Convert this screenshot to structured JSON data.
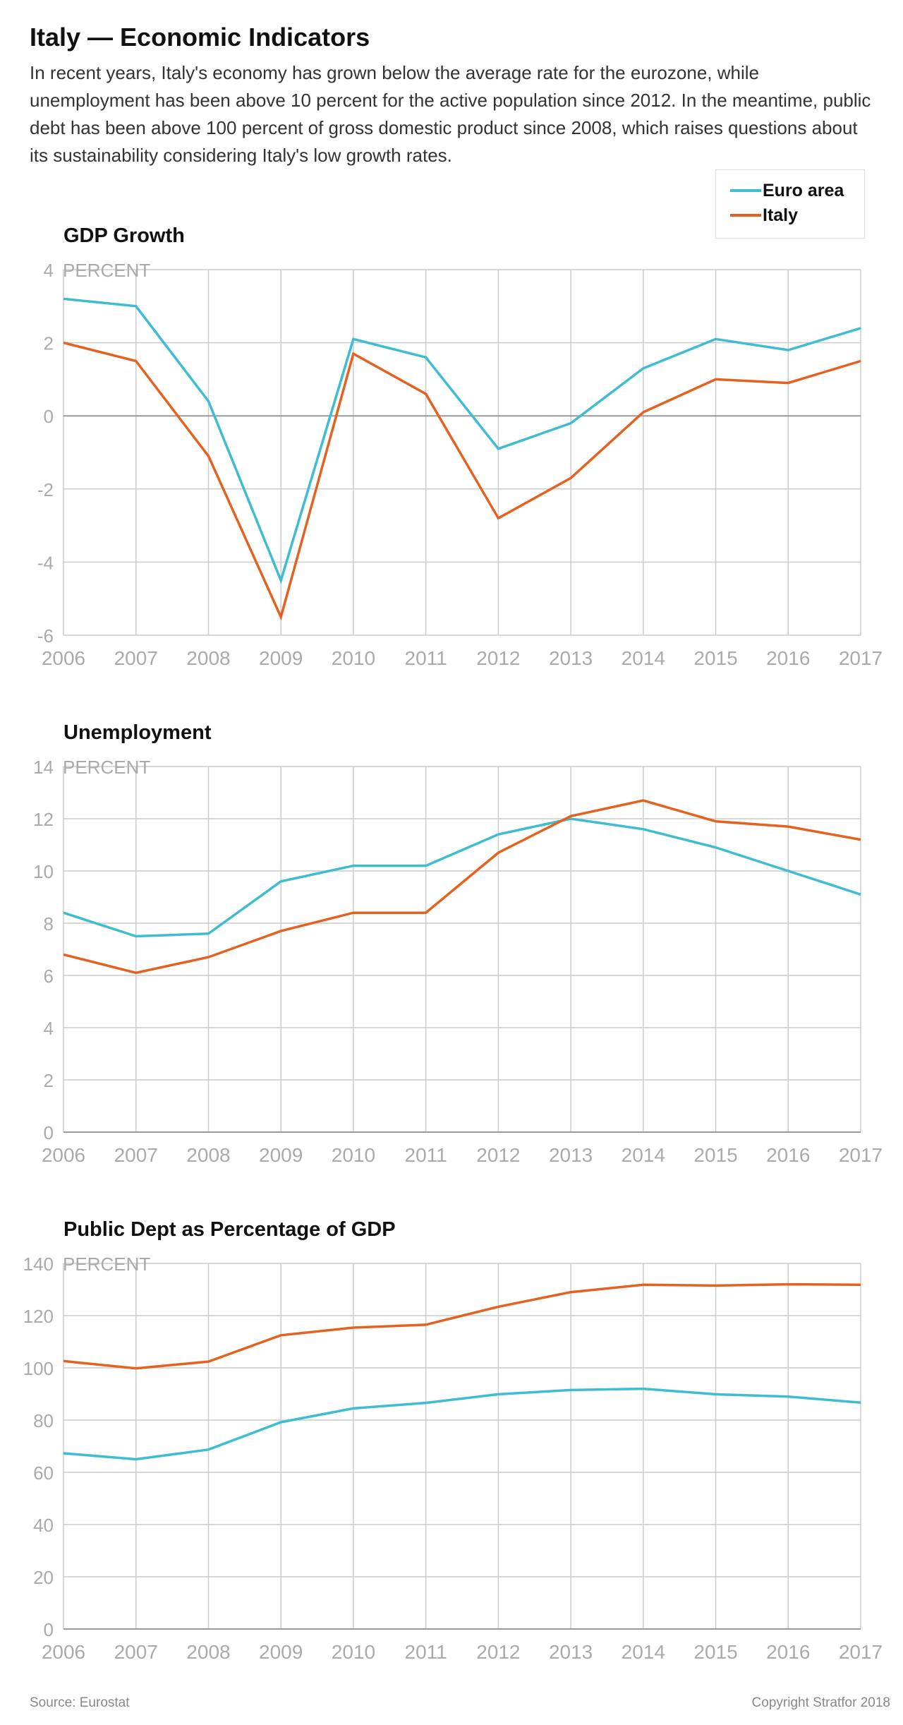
{
  "header": {
    "title": "Italy — Economic Indicators",
    "subtitle": "In recent years, Italy's economy has grown below the average rate for the eurozone, while unemployment has been above 10 percent for the active population since 2012. In the meantime, public debt has been above 100 percent of gross domestic product since 2008, which raises questions about its sustainability considering Italy's low growth rates."
  },
  "legend": [
    {
      "name": "Euro area",
      "color": "#3dbcd2"
    },
    {
      "name": "Italy",
      "color": "#e5611f"
    }
  ],
  "chart_data": [
    {
      "type": "line",
      "title": "GDP Growth",
      "ylabel": "PERCENT",
      "xlabel": "",
      "x": [
        "2006",
        "2007",
        "2008",
        "2009",
        "2010",
        "2011",
        "2012",
        "2013",
        "2014",
        "2015",
        "2016",
        "2017"
      ],
      "ylim": [
        -6,
        4
      ],
      "yticks": [
        4,
        2,
        0,
        -2,
        -4,
        -6
      ],
      "grid": true,
      "legend_position": "top-right",
      "series": [
        {
          "name": "Euro area",
          "color": "#3dbcd2",
          "values": [
            3.2,
            3.0,
            0.4,
            -4.5,
            2.1,
            1.6,
            -0.9,
            -0.2,
            1.3,
            2.1,
            1.8,
            2.4
          ]
        },
        {
          "name": "Italy",
          "color": "#e5611f",
          "values": [
            2.0,
            1.5,
            -1.1,
            -5.5,
            1.7,
            0.6,
            -2.8,
            -1.7,
            0.1,
            1.0,
            0.9,
            1.5
          ]
        }
      ]
    },
    {
      "type": "line",
      "title": "Unemployment",
      "ylabel": "PERCENT",
      "xlabel": "",
      "x": [
        "2006",
        "2007",
        "2008",
        "2009",
        "2010",
        "2011",
        "2012",
        "2013",
        "2014",
        "2015",
        "2016",
        "2017"
      ],
      "ylim": [
        0,
        14
      ],
      "yticks": [
        14,
        12,
        10,
        8,
        6,
        4,
        2,
        0
      ],
      "grid": true,
      "series": [
        {
          "name": "Euro area",
          "color": "#3dbcd2",
          "values": [
            8.4,
            7.5,
            7.6,
            9.6,
            10.2,
            10.2,
            11.4,
            12.0,
            11.6,
            10.9,
            10.0,
            9.1
          ]
        },
        {
          "name": "Italy",
          "color": "#e5611f",
          "values": [
            6.8,
            6.1,
            6.7,
            7.7,
            8.4,
            8.4,
            10.7,
            12.1,
            12.7,
            11.9,
            11.7,
            11.2
          ]
        }
      ]
    },
    {
      "type": "line",
      "title": "Public Dept as Percentage of GDP",
      "ylabel": "PERCENT",
      "xlabel": "",
      "x": [
        "2006",
        "2007",
        "2008",
        "2009",
        "2010",
        "2011",
        "2012",
        "2013",
        "2014",
        "2015",
        "2016",
        "2017"
      ],
      "ylim": [
        0,
        140
      ],
      "yticks": [
        140,
        120,
        100,
        80,
        60,
        40,
        20,
        0
      ],
      "grid": true,
      "series": [
        {
          "name": "Euro area",
          "color": "#3dbcd2",
          "values": [
            67.3,
            65.0,
            68.7,
            79.2,
            84.5,
            86.6,
            89.9,
            91.5,
            92.0,
            89.9,
            89.0,
            86.7
          ]
        },
        {
          "name": "Italy",
          "color": "#e5611f",
          "values": [
            102.6,
            99.8,
            102.4,
            112.5,
            115.4,
            116.5,
            123.4,
            129.0,
            131.8,
            131.5,
            132.0,
            131.8
          ]
        }
      ]
    }
  ],
  "footer": {
    "source": "Source: Eurostat",
    "copyright": "Copyright Stratfor 2018"
  }
}
